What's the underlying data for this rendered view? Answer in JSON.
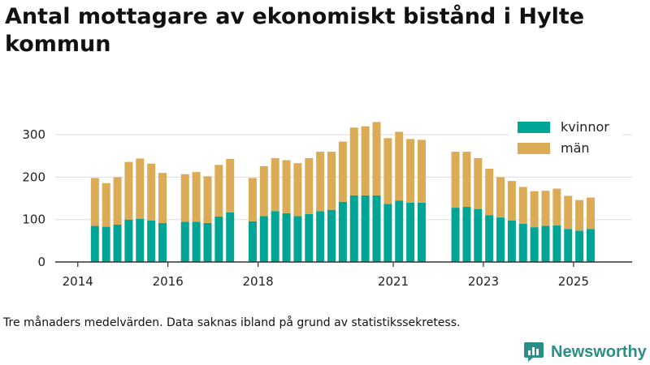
{
  "title": "Antal mottagare av ekonomiskt bistånd i Hylte kommun",
  "caption": "Tre månaders medelvärden. Data saknas ibland på grund av statistikssekretess.",
  "brand": {
    "name": "Newsworthy"
  },
  "colors": {
    "kvinnor": "#00a596",
    "man": "#dcab55",
    "grid": "#dddddd",
    "axis": "#333333"
  },
  "chart_data": {
    "type": "bar",
    "stacked": true,
    "title": "Antal mottagare av ekonomiskt bistånd i Hylte kommun",
    "xlabel": "",
    "ylabel": "",
    "ylim": [
      0,
      350
    ],
    "yticks": [
      0,
      100,
      200,
      300
    ],
    "xlim": [
      2013.5,
      2026.3
    ],
    "xticks": [
      {
        "label": "2014",
        "value": 2014
      },
      {
        "label": "2016",
        "value": 2016
      },
      {
        "label": "2018",
        "value": 2018
      },
      {
        "label": "2021",
        "value": 2021
      },
      {
        "label": "2023",
        "value": 2023
      },
      {
        "label": "2025",
        "value": 2025
      }
    ],
    "legend_position": "top-right",
    "x": [
      2014.38,
      2014.63,
      2014.88,
      2015.13,
      2015.38,
      2015.63,
      2015.88,
      2016.38,
      2016.63,
      2016.88,
      2017.13,
      2017.38,
      2017.88,
      2018.13,
      2018.38,
      2018.63,
      2018.88,
      2019.13,
      2019.38,
      2019.63,
      2019.88,
      2020.13,
      2020.38,
      2020.63,
      2020.88,
      2021.13,
      2021.38,
      2021.63,
      2022.38,
      2022.63,
      2022.88,
      2023.13,
      2023.38,
      2023.63,
      2023.88,
      2024.13,
      2024.38,
      2024.63,
      2024.88,
      2025.13,
      2025.38
    ],
    "series": [
      {
        "name": "kvinnor",
        "values": [
          85,
          83,
          88,
          100,
          102,
          98,
          92,
          95,
          95,
          92,
          107,
          117,
          96,
          108,
          120,
          115,
          108,
          113,
          120,
          123,
          142,
          157,
          157,
          157,
          137,
          145,
          140,
          140,
          128,
          130,
          125,
          110,
          105,
          98,
          90,
          82,
          85,
          86,
          78,
          74,
          78
        ]
      },
      {
        "name": "män",
        "values": [
          113,
          103,
          112,
          136,
          142,
          134,
          118,
          112,
          117,
          110,
          122,
          126,
          102,
          118,
          125,
          125,
          125,
          132,
          140,
          137,
          142,
          160,
          163,
          173,
          155,
          162,
          150,
          148,
          132,
          130,
          120,
          110,
          95,
          93,
          87,
          85,
          83,
          87,
          78,
          72,
          74
        ]
      }
    ]
  }
}
